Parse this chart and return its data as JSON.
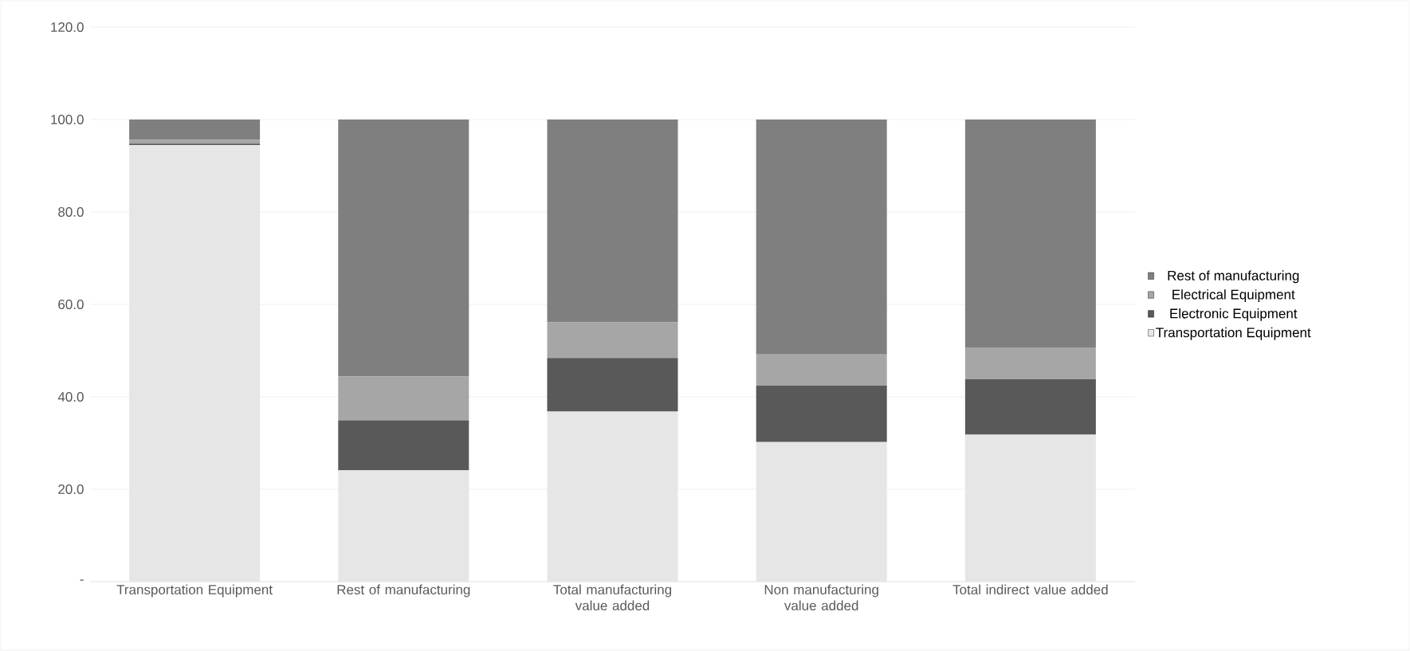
{
  "chart_data": {
    "type": "bar",
    "stacked": true,
    "categories": [
      "Transportation Equipment",
      "Rest of manufacturing",
      "Total manufacturing value added",
      "Non manufacturing value added",
      "Total indirect value added"
    ],
    "series": [
      {
        "name": "Transportation Equipment",
        "color": "#e6e6e6",
        "values": [
          94.5,
          24.1,
          36.8,
          30.2,
          31.8
        ]
      },
      {
        "name": "Electronic Equipment",
        "color": "#595959",
        "values": [
          0.3,
          10.8,
          11.6,
          12.2,
          12.0
        ]
      },
      {
        "name": "Electrical Equipment",
        "color": "#a6a6a6",
        "values": [
          0.8,
          9.5,
          7.7,
          6.8,
          6.9
        ]
      },
      {
        "name": "Rest of manufacturing",
        "color": "#7f7f7f",
        "values": [
          4.4,
          55.6,
          43.9,
          50.8,
          49.3
        ]
      }
    ],
    "ylim": [
      0,
      120
    ],
    "yticks": [
      {
        "value": 0,
        "label": "-"
      },
      {
        "value": 20,
        "label": "20.0"
      },
      {
        "value": 40,
        "label": "40.0"
      },
      {
        "value": 60,
        "label": "60.0"
      },
      {
        "value": 80,
        "label": "80.0"
      },
      {
        "value": 100,
        "label": "100.0"
      },
      {
        "value": 120,
        "label": "120.0"
      }
    ],
    "grid": "y",
    "legend": "right"
  }
}
